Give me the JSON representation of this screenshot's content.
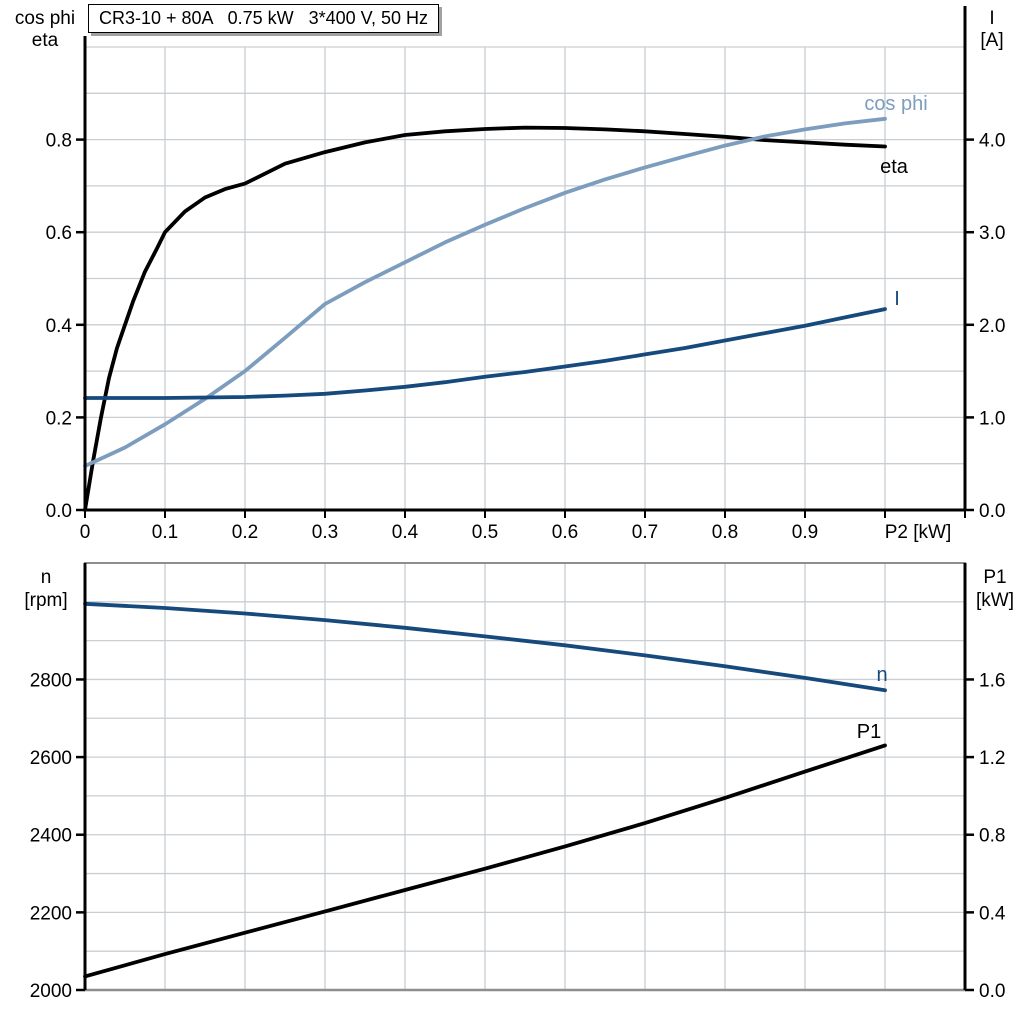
{
  "title_box": {
    "text": "CR3-10 + 80A   0.75 kW   3*400 V, 50 Hz"
  },
  "colors": {
    "black": "#000000",
    "light_blue": "#7C9DBE",
    "dark_blue": "#16497C",
    "grid": "#C9CED3",
    "frame_gray": "#8E8E8E",
    "axis_black": "#000000"
  },
  "chart_data": [
    {
      "id": "top",
      "type": "line",
      "title": "CR3-10 + 80A   0.75 kW   3*400 V, 50 Hz",
      "x_axis": {
        "label": "P2 [kW]",
        "min": 0,
        "max": 1.1,
        "grid_step": 0.1,
        "tick_values": [
          0,
          0.1,
          0.2,
          0.3,
          0.4,
          0.5,
          0.6,
          0.7,
          0.8,
          0.9
        ],
        "tick_labels": [
          "0",
          "0.1",
          "0.2",
          "0.3",
          "0.4",
          "0.5",
          "0.6",
          "0.7",
          "0.8",
          "0.9"
        ]
      },
      "left_axis": {
        "title_lines": [
          "cos phi",
          "eta"
        ],
        "min": 0,
        "max": 1.0,
        "grid_step": 0.1,
        "tick_values": [
          0,
          0.2,
          0.4,
          0.6,
          0.8
        ],
        "tick_labels": [
          "0.0",
          "0.2",
          "0.4",
          "0.6",
          "0.8"
        ]
      },
      "right_axis": {
        "title_lines": [
          "I",
          "[A]"
        ],
        "min": 0,
        "max": 5.0,
        "tick_values": [
          0,
          1,
          2,
          3,
          4
        ],
        "tick_labels": [
          "0.0",
          "1.0",
          "2.0",
          "3.0",
          "4.0"
        ]
      },
      "grid": true,
      "legend_position": "inline-labels",
      "series": [
        {
          "name": "eta",
          "label": "eta",
          "axis": "left",
          "color": "black",
          "x": [
            0,
            0.01,
            0.02,
            0.03,
            0.04,
            0.05,
            0.06,
            0.075,
            0.09,
            0.1,
            0.125,
            0.15,
            0.175,
            0.2,
            0.25,
            0.3,
            0.35,
            0.4,
            0.45,
            0.5,
            0.55,
            0.6,
            0.65,
            0.7,
            0.75,
            0.8,
            0.85,
            0.9,
            0.95,
            1.0
          ],
          "y": [
            0,
            0.105,
            0.2,
            0.285,
            0.35,
            0.4,
            0.45,
            0.515,
            0.565,
            0.6,
            0.645,
            0.675,
            0.693,
            0.705,
            0.748,
            0.773,
            0.794,
            0.81,
            0.818,
            0.823,
            0.826,
            0.825,
            0.822,
            0.818,
            0.812,
            0.806,
            0.799,
            0.794,
            0.789,
            0.785
          ]
        },
        {
          "name": "cos_phi",
          "label": "cos phi",
          "axis": "left",
          "color": "light_blue",
          "x": [
            0,
            0.05,
            0.1,
            0.15,
            0.2,
            0.25,
            0.3,
            0.35,
            0.4,
            0.45,
            0.5,
            0.55,
            0.6,
            0.65,
            0.7,
            0.75,
            0.8,
            0.85,
            0.9,
            0.95,
            1.0
          ],
          "y": [
            0.095,
            0.135,
            0.185,
            0.24,
            0.3,
            0.372,
            0.445,
            0.492,
            0.535,
            0.578,
            0.616,
            0.652,
            0.685,
            0.714,
            0.74,
            0.764,
            0.787,
            0.807,
            0.822,
            0.835,
            0.845
          ]
        },
        {
          "name": "I",
          "label": "I",
          "axis": "right",
          "color": "dark_blue",
          "x": [
            0,
            0.05,
            0.1,
            0.15,
            0.2,
            0.25,
            0.3,
            0.35,
            0.4,
            0.45,
            0.5,
            0.55,
            0.6,
            0.65,
            0.7,
            0.75,
            0.8,
            0.85,
            0.9,
            0.95,
            1.0
          ],
          "y": [
            1.21,
            1.21,
            1.21,
            1.215,
            1.22,
            1.235,
            1.255,
            1.29,
            1.33,
            1.38,
            1.44,
            1.49,
            1.55,
            1.61,
            1.68,
            1.75,
            1.83,
            1.91,
            1.99,
            2.08,
            2.17
          ]
        }
      ]
    },
    {
      "id": "bottom",
      "type": "line",
      "x_axis": {
        "label": "",
        "min": 0,
        "max": 1.1,
        "grid_step": 0.1,
        "tick_values": [],
        "tick_labels": []
      },
      "left_axis": {
        "title_lines": [
          "n",
          "[rpm]"
        ],
        "min": 2000,
        "max": 3100,
        "grid_step": 100,
        "tick_values": [
          2000,
          2200,
          2400,
          2600,
          2800
        ],
        "tick_labels": [
          "2000",
          "2200",
          "2400",
          "2600",
          "2800"
        ]
      },
      "right_axis": {
        "title_lines": [
          "P1",
          "[kW]"
        ],
        "min": 0,
        "max": 2.2,
        "tick_values": [
          0,
          0.4,
          0.8,
          1.2,
          1.6
        ],
        "tick_labels": [
          "0.0",
          "0.4",
          "0.8",
          "1.2",
          "1.6"
        ]
      },
      "grid": true,
      "legend_position": "inline-labels",
      "series": [
        {
          "name": "n",
          "label": "n",
          "axis": "left",
          "color": "dark_blue",
          "x": [
            0,
            0.1,
            0.2,
            0.3,
            0.4,
            0.5,
            0.6,
            0.7,
            0.8,
            0.9,
            1.0
          ],
          "y": [
            2995,
            2984,
            2970,
            2953,
            2933,
            2911,
            2888,
            2862,
            2834,
            2804,
            2772
          ]
        },
        {
          "name": "P1",
          "label": "P1",
          "axis": "right",
          "color": "black",
          "x": [
            0,
            0.1,
            0.2,
            0.3,
            0.4,
            0.5,
            0.6,
            0.7,
            0.8,
            0.9,
            1.0
          ],
          "y": [
            0.07,
            0.185,
            0.295,
            0.405,
            0.515,
            0.625,
            0.74,
            0.86,
            0.99,
            1.125,
            1.26
          ]
        }
      ]
    }
  ]
}
